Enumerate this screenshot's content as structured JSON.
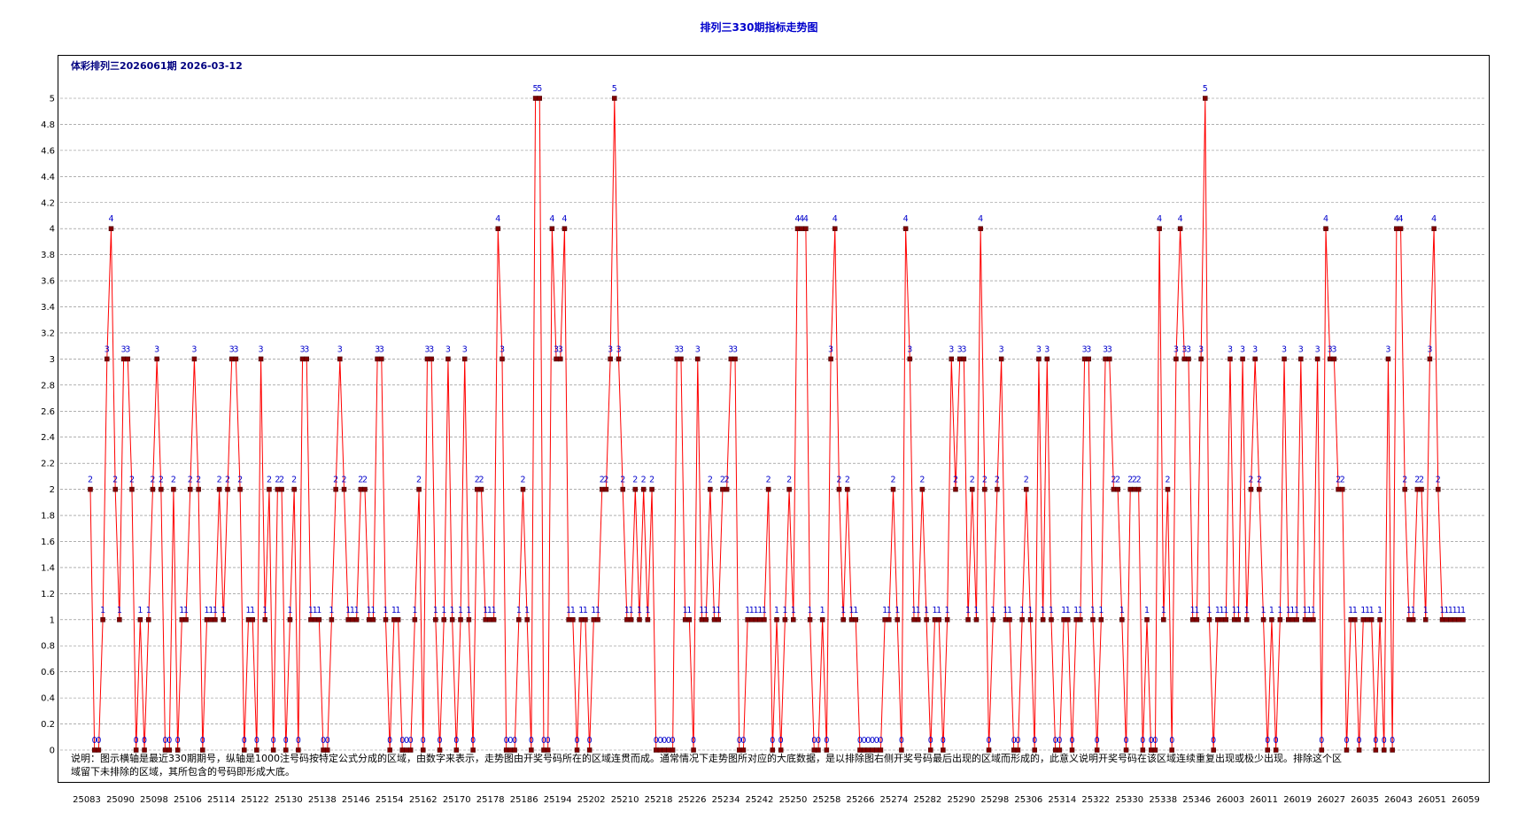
{
  "title": "排列三330期指标走势图",
  "subtitle": "体彩排列三2026061期  2026-03-12",
  "note": "说明：图示横轴是最近330期期号，纵轴是1000注号码按特定公式分成的区域，由数字来表示，走势图由开奖号码所在的区域连贯而成。通常情况下走势图所对应的大底数据，是以排除图右侧开奖号码最后出现的区域而形成的，此意义说明开奖号码在该区域连续重复出现或极少出现。排除这个区域留下未排除的区域，其所包含的号码即形成大底。",
  "colors": {
    "line": "#ff0000",
    "marker": "#800000",
    "label": "#0000cc",
    "grid": "#808080"
  },
  "chart_data": {
    "type": "line",
    "title": "排列三330期指标走势图",
    "xlabel": "",
    "ylabel": "",
    "ylim": [
      0,
      5
    ],
    "grid": true,
    "yticks": [
      "0",
      "0.2",
      "0.4",
      "0.6",
      "0.8",
      "1",
      "1.2",
      "1.4",
      "1.6",
      "1.8",
      "2",
      "2.2",
      "2.4",
      "2.6",
      "2.8",
      "3",
      "3.2",
      "3.4",
      "3.6",
      "3.8",
      "4",
      "4.2",
      "4.4",
      "4.6",
      "4.8",
      "5"
    ],
    "xticks": [
      "25083",
      "25090",
      "25098",
      "25106",
      "25114",
      "25122",
      "25130",
      "25138",
      "25146",
      "25154",
      "25162",
      "25170",
      "25178",
      "25186",
      "25194",
      "25202",
      "25210",
      "25218",
      "25226",
      "25234",
      "25242",
      "25250",
      "25258",
      "25266",
      "25274",
      "25282",
      "25290",
      "25298",
      "25306",
      "25314",
      "25322",
      "25330",
      "25338",
      "25346",
      "26003",
      "26011",
      "26019",
      "26027",
      "26035",
      "26043",
      "26051",
      "26059"
    ],
    "series": [
      {
        "values": [
          2,
          0,
          0,
          1,
          3,
          4,
          2,
          1,
          3,
          3,
          2,
          0,
          1,
          0,
          1,
          2,
          3,
          2,
          0,
          0,
          2,
          0,
          1,
          1,
          2,
          3,
          2,
          0,
          1,
          1,
          1,
          2,
          1,
          2,
          3,
          3,
          2,
          0,
          1,
          1,
          0,
          3,
          1,
          2,
          0,
          2,
          2,
          0,
          1,
          2,
          0,
          3,
          3,
          1,
          1,
          1,
          0,
          0,
          1,
          2,
          3,
          2,
          1,
          1,
          1,
          2,
          2,
          1,
          1,
          3,
          3,
          1,
          0,
          1,
          1,
          0,
          0,
          0,
          1,
          2,
          0,
          3,
          3,
          1,
          0,
          1,
          3,
          1,
          0,
          1,
          3,
          1,
          0,
          2,
          2,
          1,
          1,
          1,
          4,
          3,
          0,
          0,
          0,
          1,
          2,
          1,
          0,
          5,
          5,
          0,
          0,
          4,
          3,
          3,
          4,
          1,
          1,
          0,
          1,
          1,
          0,
          1,
          1,
          2,
          2,
          3,
          5,
          3,
          2,
          1,
          1,
          2,
          1,
          2,
          1,
          2,
          0,
          0,
          0,
          0,
          0,
          3,
          3,
          1,
          1,
          0,
          3,
          1,
          1,
          2,
          1,
          1,
          2,
          2,
          3,
          3,
          0,
          0,
          1,
          1,
          1,
          1,
          1,
          2,
          0,
          1,
          0,
          1,
          2,
          1,
          4,
          4,
          4,
          1,
          0,
          0,
          1,
          0,
          3,
          4,
          2,
          1,
          2,
          1,
          1,
          0,
          0,
          0,
          0,
          0,
          0,
          1,
          1,
          2,
          1,
          0,
          4,
          3,
          1,
          1,
          2,
          1,
          0,
          1,
          1,
          0,
          1,
          3,
          2,
          3,
          3,
          1,
          2,
          1,
          4,
          2,
          0,
          1,
          2,
          3,
          1,
          1,
          0,
          0,
          1,
          2,
          1,
          0,
          3,
          1,
          3,
          1,
          0,
          0,
          1,
          1,
          0,
          1,
          1,
          3,
          3,
          1,
          0,
          1,
          3,
          3,
          2,
          2,
          1,
          0,
          2,
          2,
          2,
          0,
          1,
          0,
          0,
          4,
          1,
          2,
          0,
          3,
          4,
          3,
          3,
          1,
          1,
          3,
          5,
          1,
          0,
          1,
          1,
          1,
          3,
          1,
          1,
          3,
          1,
          2,
          3,
          2,
          1,
          0,
          1,
          0,
          1,
          3,
          1,
          1,
          1,
          3,
          1,
          1,
          1,
          3,
          0,
          4,
          3,
          3,
          2,
          2,
          0,
          1,
          1,
          0,
          1,
          1,
          1,
          0,
          1,
          0,
          3,
          0,
          4,
          4,
          2,
          1,
          1,
          2,
          2,
          1,
          3,
          4,
          2,
          1,
          1,
          1,
          1,
          1,
          1
        ]
      }
    ]
  }
}
